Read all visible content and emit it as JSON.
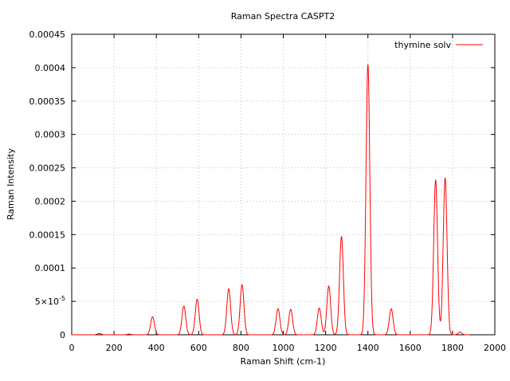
{
  "chart_data": {
    "type": "line",
    "title": "Raman Spectra CASPT2",
    "xlabel": "Raman Shift (cm-1)",
    "ylabel": "Raman Intensity",
    "xlim": [
      0,
      2000
    ],
    "ylim": [
      0,
      0.00045
    ],
    "grid": true,
    "legend_position": "top-right",
    "x_ticks": [
      0,
      200,
      400,
      600,
      800,
      1000,
      1200,
      1400,
      1600,
      1800,
      2000
    ],
    "x_tick_labels": [
      "0",
      "200",
      "400",
      "600",
      "800",
      "1000",
      "1200",
      "1400",
      "1600",
      "1800",
      "2000"
    ],
    "y_ticks": [
      0,
      5e-05,
      0.0001,
      0.00015,
      0.0002,
      0.00025,
      0.0003,
      0.00035,
      0.0004,
      0.00045
    ],
    "y_tick_labels": [
      "0",
      "5×10-5",
      "0.0001",
      "0.00015",
      "0.0002",
      "0.00025",
      "0.0003",
      "0.00035",
      "0.0004",
      "0.00045"
    ],
    "series": [
      {
        "name": "thymine solv",
        "color": "#ff0000",
        "peaks": [
          {
            "position": 130,
            "intensity": 2e-06
          },
          {
            "position": 270,
            "intensity": 1e-06
          },
          {
            "position": 382,
            "intensity": 2.7e-05
          },
          {
            "position": 530,
            "intensity": 4.3e-05
          },
          {
            "position": 593,
            "intensity": 5.3e-05
          },
          {
            "position": 742,
            "intensity": 6.9e-05
          },
          {
            "position": 805,
            "intensity": 7.5e-05
          },
          {
            "position": 975,
            "intensity": 3.9e-05
          },
          {
            "position": 1035,
            "intensity": 3.8e-05
          },
          {
            "position": 1170,
            "intensity": 4e-05
          },
          {
            "position": 1215,
            "intensity": 7.3e-05
          },
          {
            "position": 1275,
            "intensity": 0.000147
          },
          {
            "position": 1400,
            "intensity": 0.000405
          },
          {
            "position": 1510,
            "intensity": 3.9e-05
          },
          {
            "position": 1720,
            "intensity": 0.000232
          },
          {
            "position": 1765,
            "intensity": 0.000235
          },
          {
            "position": 1835,
            "intensity": 4e-06
          }
        ]
      }
    ]
  }
}
